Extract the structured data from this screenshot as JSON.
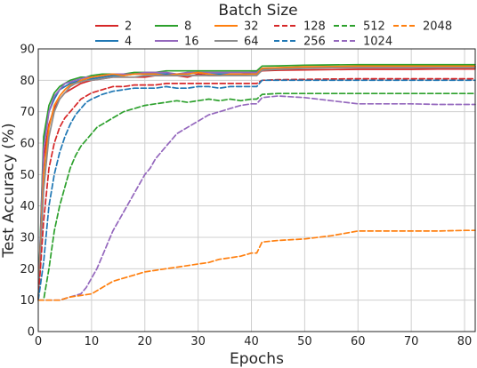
{
  "chart_data": {
    "type": "line",
    "xlabel": "Epochs",
    "ylabel": "Test Accuracy (%)",
    "xlim": [
      0,
      82
    ],
    "ylim": [
      0,
      90
    ],
    "xticks": [
      0,
      10,
      20,
      30,
      40,
      50,
      60,
      70,
      80
    ],
    "yticks": [
      0,
      10,
      20,
      30,
      40,
      50,
      60,
      70,
      80,
      90
    ],
    "grid": true,
    "legend": {
      "title": "Batch Size",
      "placement": "top-center"
    },
    "series": [
      {
        "name": "2",
        "color": "#d62728",
        "style": "solid",
        "x": [
          0,
          1,
          2,
          3,
          4,
          5,
          6,
          7,
          8,
          9,
          10,
          12,
          14,
          16,
          18,
          20,
          22,
          24,
          26,
          28,
          30,
          32,
          34,
          36,
          38,
          40,
          41,
          42,
          45,
          50,
          55,
          60,
          65,
          70,
          75,
          80,
          82
        ],
        "y": [
          10,
          55,
          66,
          71,
          74,
          76,
          77,
          78,
          79,
          79.5,
          80,
          80.5,
          81,
          81,
          81,
          81,
          81.5,
          81.5,
          81.5,
          81,
          82,
          81.5,
          81.5,
          81.8,
          81.8,
          82,
          82,
          83,
          83.2,
          83.3,
          83.4,
          83.5,
          83.5,
          83.5,
          83.6,
          83.6,
          83.6
        ]
      },
      {
        "name": "4",
        "color": "#1f77b4",
        "style": "solid",
        "x": [
          0,
          1,
          2,
          3,
          4,
          5,
          6,
          7,
          8,
          9,
          10,
          12,
          14,
          16,
          18,
          20,
          22,
          24,
          26,
          28,
          30,
          32,
          34,
          36,
          38,
          40,
          41,
          42,
          45,
          50,
          55,
          60,
          65,
          70,
          75,
          80,
          82
        ],
        "y": [
          10,
          60,
          70,
          74,
          77,
          78,
          79,
          79.5,
          80,
          80,
          80.5,
          81,
          81.5,
          81.5,
          82,
          82,
          82,
          82,
          82,
          82,
          82.5,
          82,
          82,
          82,
          82,
          82.5,
          82.5,
          83.5,
          83.8,
          84,
          84,
          84,
          84.1,
          84.2,
          84.2,
          84.2,
          84.2
        ]
      },
      {
        "name": "8",
        "color": "#2ca02c",
        "style": "solid",
        "x": [
          0,
          1,
          2,
          3,
          4,
          5,
          6,
          7,
          8,
          9,
          10,
          12,
          14,
          16,
          18,
          20,
          22,
          24,
          26,
          28,
          30,
          32,
          34,
          36,
          38,
          40,
          41,
          42,
          45,
          50,
          55,
          60,
          65,
          70,
          75,
          80,
          82
        ],
        "y": [
          10,
          62,
          72,
          76,
          78,
          79,
          80,
          80.5,
          81,
          81,
          81.5,
          82,
          82,
          82,
          82.5,
          82.5,
          82.5,
          83,
          83,
          83,
          83,
          83,
          83,
          83,
          83,
          83,
          83,
          84.5,
          84.6,
          84.8,
          84.9,
          85,
          85,
          85,
          85,
          85,
          85
        ]
      },
      {
        "name": "16",
        "color": "#9467bd",
        "style": "solid",
        "x": [
          0,
          1,
          2,
          3,
          4,
          5,
          6,
          7,
          8,
          9,
          10,
          12,
          14,
          16,
          18,
          20,
          22,
          24,
          26,
          28,
          30,
          32,
          34,
          36,
          38,
          40,
          41,
          42,
          45,
          50,
          55,
          60,
          65,
          70,
          75,
          80,
          82
        ],
        "y": [
          10,
          58,
          70,
          75,
          77,
          79,
          79.5,
          80,
          80.5,
          81,
          81,
          81.5,
          82,
          82,
          82,
          82.5,
          82.5,
          82.5,
          82,
          82.5,
          82.5,
          82.5,
          82.5,
          82.5,
          82.5,
          82.5,
          82.5,
          83.8,
          84,
          84.2,
          84.3,
          84.4,
          84.4,
          84.4,
          84.4,
          84.4,
          84.4
        ]
      },
      {
        "name": "32",
        "color": "#ff7f0e",
        "style": "solid",
        "x": [
          0,
          1,
          2,
          3,
          4,
          5,
          6,
          7,
          8,
          9,
          10,
          12,
          14,
          16,
          18,
          20,
          22,
          24,
          26,
          28,
          30,
          32,
          34,
          36,
          38,
          40,
          41,
          42,
          45,
          50,
          55,
          60,
          65,
          70,
          75,
          80,
          82
        ],
        "y": [
          10,
          50,
          65,
          72,
          75,
          77,
          78.5,
          79,
          80,
          80.5,
          81,
          81.5,
          82,
          81.5,
          82,
          82,
          82,
          81.5,
          82,
          82,
          82.5,
          82,
          81.5,
          82,
          82,
          82,
          82,
          83.8,
          84,
          84.3,
          84.4,
          84.5,
          84.5,
          84.5,
          84.5,
          84.5,
          84.5
        ]
      },
      {
        "name": "64",
        "color": "#8c8c8c",
        "style": "solid",
        "x": [
          0,
          1,
          2,
          3,
          4,
          5,
          6,
          7,
          8,
          9,
          10,
          12,
          14,
          16,
          18,
          20,
          22,
          24,
          26,
          28,
          30,
          32,
          34,
          36,
          38,
          40,
          41,
          42,
          45,
          50,
          55,
          60,
          65,
          70,
          75,
          80,
          82
        ],
        "y": [
          10,
          45,
          62,
          70,
          74,
          76,
          78,
          79,
          79.5,
          80,
          80,
          80.5,
          81,
          81,
          81,
          81.5,
          81.5,
          81.5,
          81.5,
          81.5,
          81.5,
          81.5,
          81.5,
          81.5,
          81.5,
          81.5,
          81.5,
          83.2,
          83.5,
          83.8,
          84,
          84,
          84,
          84,
          84,
          84,
          84
        ]
      },
      {
        "name": "128",
        "color": "#d62728",
        "style": "dashed",
        "x": [
          0,
          1,
          2,
          3,
          4,
          5,
          6,
          7,
          8,
          9,
          10,
          12,
          14,
          16,
          18,
          20,
          22,
          24,
          26,
          28,
          30,
          32,
          34,
          36,
          38,
          40,
          41,
          42,
          45,
          50,
          55,
          60,
          65,
          70,
          75,
          80,
          82
        ],
        "y": [
          10,
          35,
          52,
          60,
          65,
          68,
          70,
          72,
          74,
          75,
          76,
          77,
          78,
          78,
          78.5,
          78.5,
          78.5,
          79,
          79,
          79,
          79,
          79,
          79,
          79,
          79,
          79,
          79,
          80,
          80.2,
          80.3,
          80.4,
          80.5,
          80.5,
          80.5,
          80.5,
          80.5,
          80.5
        ]
      },
      {
        "name": "256",
        "color": "#1f77b4",
        "style": "dashed",
        "x": [
          0,
          1,
          2,
          3,
          4,
          5,
          6,
          7,
          8,
          9,
          10,
          12,
          14,
          16,
          18,
          20,
          22,
          24,
          26,
          28,
          30,
          32,
          34,
          36,
          38,
          40,
          41,
          42,
          45,
          50,
          55,
          60,
          65,
          70,
          75,
          80,
          82
        ],
        "y": [
          10,
          22,
          40,
          50,
          57,
          62,
          66,
          69,
          71,
          73,
          74,
          75.5,
          76.5,
          77,
          77.5,
          77.5,
          77.5,
          78,
          77.5,
          77.5,
          78,
          78,
          77.5,
          78,
          78,
          78,
          78,
          80,
          80,
          80,
          80,
          80,
          80,
          80,
          80,
          80,
          80
        ]
      },
      {
        "name": "512",
        "color": "#2ca02c",
        "style": "dashed",
        "x": [
          0,
          1,
          2,
          3,
          4,
          5,
          6,
          7,
          8,
          9,
          10,
          11,
          12,
          14,
          16,
          18,
          20,
          22,
          24,
          26,
          28,
          30,
          32,
          34,
          36,
          38,
          40,
          41,
          42,
          45,
          50,
          55,
          60,
          65,
          70,
          75,
          80,
          82
        ],
        "y": [
          10,
          10,
          20,
          32,
          40,
          46,
          52,
          56,
          59,
          61,
          63,
          65,
          66,
          68,
          70,
          71,
          72,
          72.5,
          73,
          73.5,
          73,
          73.5,
          74,
          73.5,
          74,
          73.5,
          74,
          74,
          75.5,
          75.8,
          75.8,
          75.8,
          75.8,
          75.8,
          75.8,
          75.8,
          75.8,
          75.8
        ]
      },
      {
        "name": "1024",
        "color": "#9467bd",
        "style": "dashed",
        "x": [
          0,
          2,
          4,
          6,
          8,
          9,
          10,
          11,
          12,
          13,
          14,
          15,
          16,
          17,
          18,
          19,
          20,
          21,
          22,
          23,
          24,
          25,
          26,
          28,
          30,
          32,
          34,
          36,
          38,
          40,
          41,
          42,
          45,
          50,
          55,
          60,
          65,
          70,
          75,
          80,
          82
        ],
        "y": [
          10,
          10,
          10,
          11,
          12,
          14,
          17,
          20,
          24,
          28,
          32,
          35,
          38,
          41,
          44,
          47,
          50,
          52,
          55,
          57,
          59,
          61,
          63,
          65,
          67,
          69,
          70,
          71,
          72,
          72.5,
          72.5,
          74.5,
          75,
          74.5,
          73.5,
          72.5,
          72.5,
          72.5,
          72.3,
          72.3,
          72.3
        ]
      },
      {
        "name": "2048",
        "color": "#ff7f0e",
        "style": "dashed",
        "x": [
          0,
          2,
          4,
          6,
          8,
          10,
          12,
          14,
          16,
          18,
          20,
          22,
          24,
          26,
          28,
          30,
          32,
          34,
          36,
          38,
          40,
          41,
          42,
          45,
          50,
          55,
          60,
          65,
          70,
          75,
          80,
          82
        ],
        "y": [
          10,
          10,
          10,
          11,
          11.5,
          12,
          14,
          16,
          17,
          18,
          19,
          19.5,
          20,
          20.5,
          21,
          21.5,
          22,
          23,
          23.5,
          24,
          25,
          25,
          28.5,
          29,
          29.5,
          30.5,
          32,
          32,
          32,
          32,
          32.2,
          32.2
        ]
      }
    ]
  }
}
